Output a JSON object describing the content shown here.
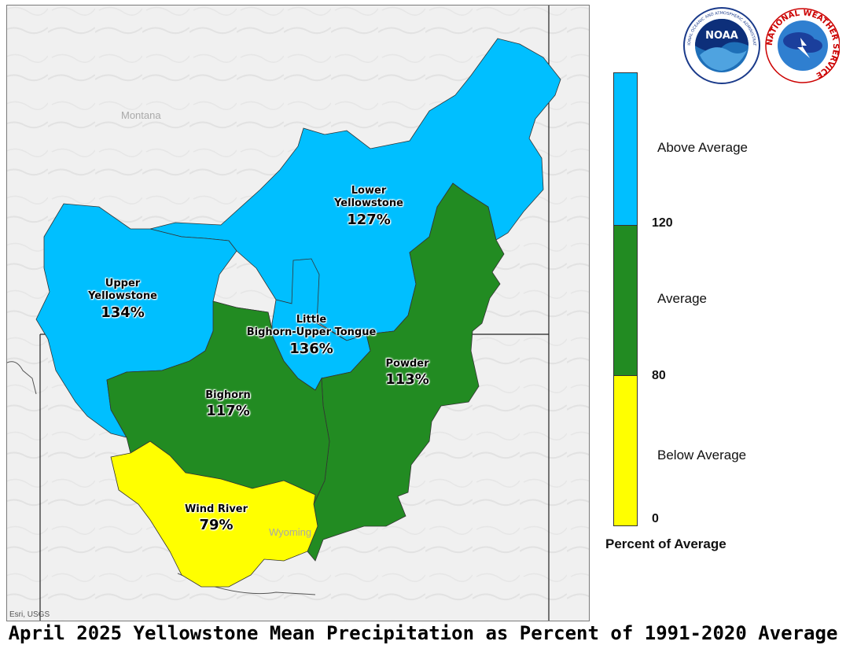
{
  "title": "April 2025 Yellowstone Mean Precipitation as Percent of 1991-2020 Average",
  "map": {
    "state_labels": [
      "Montana",
      "Wyoming"
    ],
    "credits": "Esri, USGS",
    "basins": [
      {
        "name_lines": [
          "Lower",
          "Yellowstone"
        ],
        "percent": "127%",
        "category": "Above Average"
      },
      {
        "name_lines": [
          "Upper",
          "Yellowstone"
        ],
        "percent": "134%",
        "category": "Above Average"
      },
      {
        "name_lines": [
          "Little",
          "Bighorn-Upper Tongue"
        ],
        "percent": "136%",
        "category": "Above Average"
      },
      {
        "name_lines": [
          "Powder"
        ],
        "percent": "113%",
        "category": "Average"
      },
      {
        "name_lines": [
          "Bighorn"
        ],
        "percent": "117%",
        "category": "Average"
      },
      {
        "name_lines": [
          "Wind River"
        ],
        "percent": "79%",
        "category": "Below Average"
      }
    ]
  },
  "legend": {
    "title": "Percent of Average",
    "categories": [
      {
        "label": "Above Average",
        "color": "#00bfff"
      },
      {
        "label": "Average",
        "color": "#228b22"
      },
      {
        "label": "Below Average",
        "color": "#ffff00"
      }
    ],
    "ticks": [
      "120",
      "80",
      "0"
    ]
  },
  "logos": {
    "noaa_text": "NOAA",
    "noaa_ring_top": "NATIONAL OCEANIC AND ATMOSPHERIC ADMINISTRATION",
    "noaa_ring_bottom": "U.S. DEPARTMENT OF COMMERCE",
    "nws_ring": "NATIONAL WEATHER SERVICE"
  }
}
